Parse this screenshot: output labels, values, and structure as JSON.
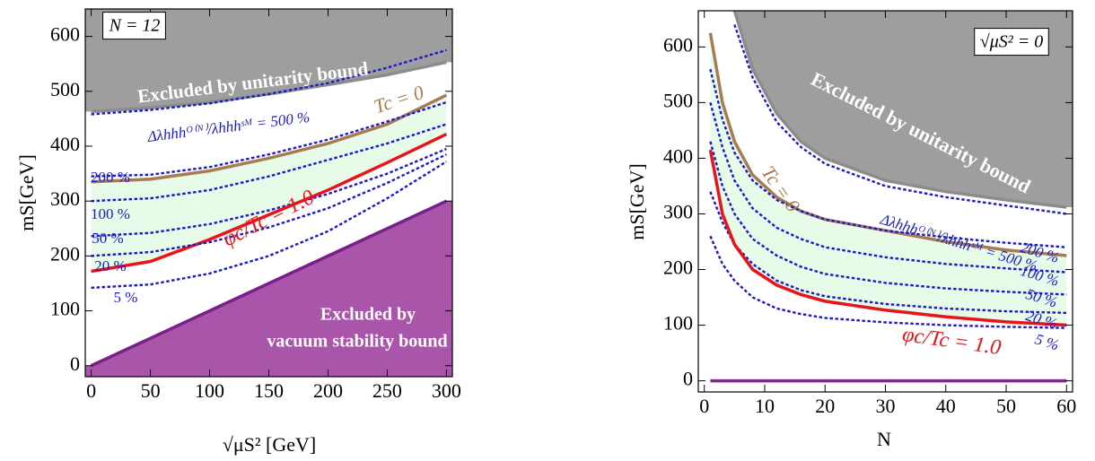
{
  "chart_data": [
    {
      "type": "line",
      "xlabel": "√μS² [GeV]",
      "ylabel": "mS[GeV]",
      "xlim": [
        -5,
        305
      ],
      "ylim": [
        -20,
        650
      ],
      "xticks": [
        0,
        50,
        100,
        150,
        200,
        250,
        300
      ],
      "yticks": [
        0,
        100,
        200,
        300,
        400,
        500,
        600
      ],
      "x": [
        0,
        50,
        100,
        150,
        200,
        250,
        300
      ],
      "series": [
        {
          "color": "#8c8c8c",
          "values": [
            463,
            470,
            480,
            495,
            512,
            530,
            553
          ],
          "fill": "top",
          "fill_color": "#9e9e9e"
        },
        {
          "color": "#1a1acc",
          "dash": true,
          "values": [
            458,
            466,
            478,
            495,
            515,
            543,
            575
          ]
        },
        {
          "color": "#a67c52",
          "values": [
            335,
            340,
            355,
            378,
            405,
            440,
            493
          ]
        },
        {
          "color": "#1a1acc",
          "dash": true,
          "values": [
            345,
            348,
            362,
            385,
            412,
            445,
            480
          ]
        },
        {
          "color": "#1a1acc",
          "dash": true,
          "values": [
            300,
            305,
            320,
            345,
            375,
            405,
            440
          ]
        },
        {
          "color": "#1a1acc",
          "dash": true,
          "values": [
            236,
            242,
            258,
            283,
            313,
            350,
            395
          ]
        },
        {
          "color": "#e8141a",
          "values": [
            172,
            190,
            230,
            275,
            320,
            370,
            422
          ]
        },
        {
          "color": "#1a1acc",
          "dash": true,
          "values": [
            200,
            207,
            225,
            252,
            287,
            333,
            385
          ]
        },
        {
          "color": "#1a1acc",
          "dash": true,
          "values": [
            142,
            148,
            168,
            200,
            245,
            305,
            372
          ]
        },
        {
          "color": "#7a1f8a",
          "values": [
            0,
            50,
            100,
            150,
            200,
            250,
            300
          ],
          "fill": "bottom",
          "fill_color": "#a855aa"
        }
      ],
      "shade": {
        "color": "#e8fbe8",
        "between": [
          2,
          6
        ]
      },
      "annotations": [
        "N = 12",
        "Excluded by unitarity bound",
        "Tc = 0",
        "Δλhhhᴼ⁽ᴺ⁾/λhhhˢᴹ = 500 %",
        "200 %",
        "100 %",
        "50 %",
        "20 %",
        "5 %",
        "φc/Tc = 1.0",
        "Excluded by",
        "vacuum stability bound"
      ]
    },
    {
      "type": "line",
      "xlabel": "N",
      "ylabel": "mS[GeV]",
      "xlim": [
        -1,
        61
      ],
      "ylim": [
        -20,
        665
      ],
      "xticks": [
        0,
        10,
        20,
        30,
        40,
        50,
        60
      ],
      "yticks": [
        0,
        100,
        200,
        300,
        400,
        500,
        600
      ],
      "x": [
        1,
        3,
        5,
        8,
        12,
        16,
        20,
        30,
        40,
        50,
        60
      ],
      "series": [
        {
          "color": "#8c8c8c",
          "values": [
            null,
            null,
            665,
            560,
            480,
            430,
            400,
            360,
            340,
            325,
            312
          ],
          "fill": "top",
          "fill_color": "#9e9e9e"
        },
        {
          "color": "#1a1acc",
          "dash": true,
          "values": [
            null,
            null,
            640,
            545,
            465,
            420,
            390,
            350,
            330,
            315,
            300
          ]
        },
        {
          "color": "#a67c52",
          "values": [
            625,
            500,
            430,
            370,
            330,
            305,
            290,
            270,
            250,
            235,
            225
          ]
        },
        {
          "color": "#1a1acc",
          "dash": true,
          "values": [
            560,
            470,
            410,
            360,
            325,
            305,
            290,
            270,
            258,
            248,
            240
          ]
        },
        {
          "color": "#1a1acc",
          "dash": true,
          "values": [
            500,
            420,
            360,
            310,
            275,
            255,
            240,
            222,
            210,
            202,
            195
          ]
        },
        {
          "color": "#1a1acc",
          "dash": true,
          "values": [
            430,
            350,
            300,
            255,
            225,
            205,
            192,
            176,
            166,
            160,
            155
          ]
        },
        {
          "color": "#1a1acc",
          "dash": true,
          "values": [
            340,
            285,
            245,
            210,
            180,
            163,
            152,
            138,
            130,
            125,
            122
          ]
        },
        {
          "color": "#e8141a",
          "values": [
            415,
            300,
            245,
            200,
            172,
            155,
            143,
            127,
            115,
            106,
            100
          ]
        },
        {
          "color": "#1a1acc",
          "dash": true,
          "values": [
            260,
            210,
            180,
            150,
            130,
            120,
            113,
            105,
            100,
            97,
            95
          ]
        },
        {
          "color": "#8a1f9a",
          "values": [
            0,
            0,
            0,
            0,
            0,
            0,
            0,
            0,
            0,
            0,
            0
          ]
        }
      ],
      "shade": {
        "color": "#e8fbe8",
        "between": [
          2,
          7
        ]
      },
      "annotations": [
        "√μS² = 0",
        "Excluded by unitarity bound",
        "Tc = 0",
        "Δλhhhᴼ⁽ᴺ⁾/λhhhˢᴹ = 500 %",
        "200 %",
        "100 %",
        "50 %",
        "20 %",
        "5 %",
        "φc/Tc = 1.0"
      ]
    }
  ]
}
